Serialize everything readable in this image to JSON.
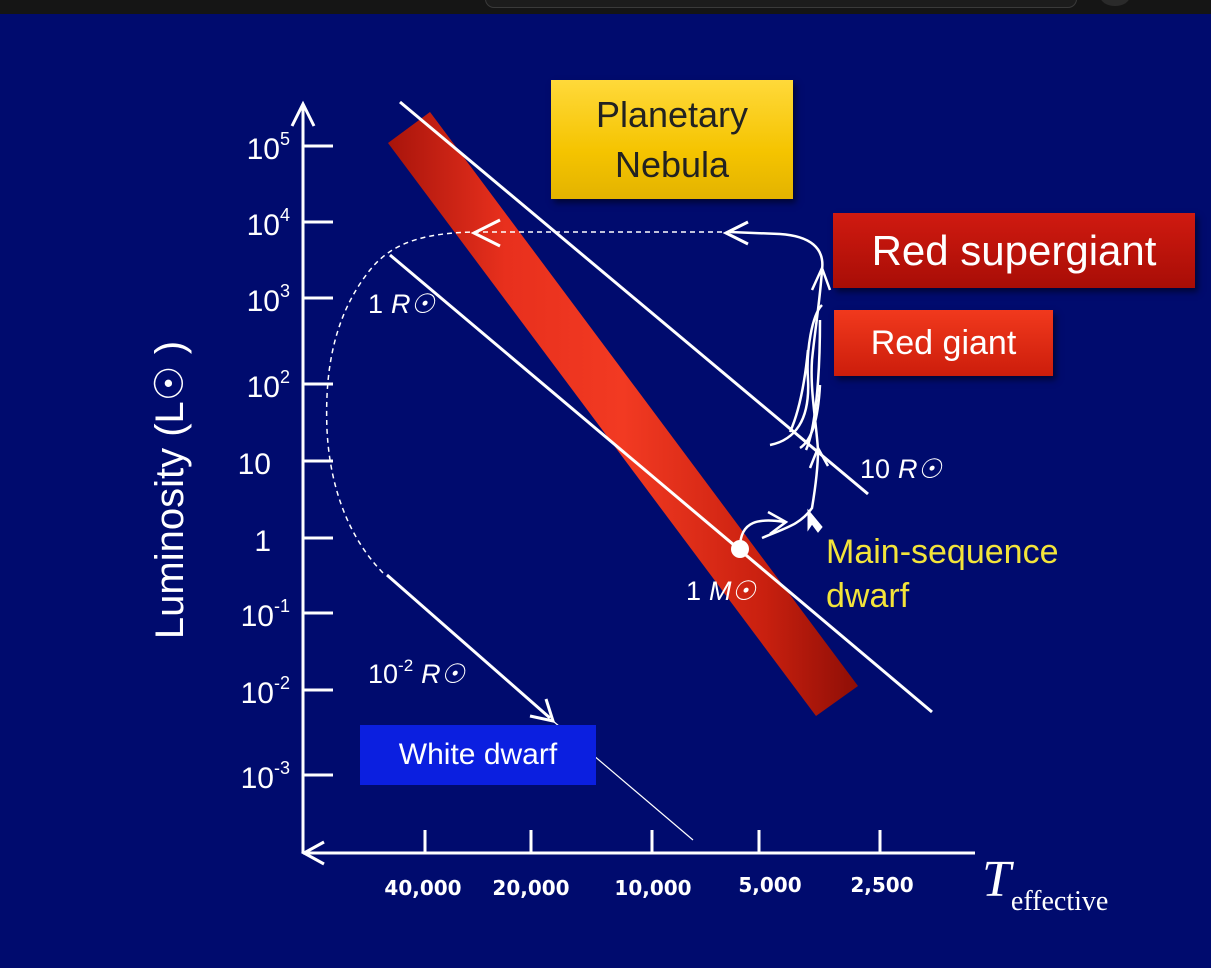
{
  "y_axis": {
    "title": "Luminosity (L☉ )",
    "ticks": [
      {
        "base": "10",
        "exp": "5"
      },
      {
        "base": "10",
        "exp": "4"
      },
      {
        "base": "10",
        "exp": "3"
      },
      {
        "base": "10",
        "exp": "2"
      },
      {
        "base": "10",
        "exp": ""
      },
      {
        "base": "1",
        "exp": ""
      },
      {
        "base": "10",
        "exp": "-1"
      },
      {
        "base": "10",
        "exp": "-2"
      },
      {
        "base": "10",
        "exp": "-3"
      }
    ]
  },
  "x_axis": {
    "title_main": "T",
    "title_sub": "effective",
    "ticks": [
      "40,000",
      "20,000",
      "10,000",
      "5,000",
      "2,500"
    ]
  },
  "radius_lines": {
    "r1": {
      "num": "1",
      "unit": "R☉"
    },
    "r10": {
      "num": "10",
      "unit": "R☉"
    },
    "r001": {
      "num": "10",
      "exp": "-2",
      "unit": "R☉"
    }
  },
  "boxes": {
    "planetary_line1": "Planetary",
    "planetary_line2": "Nebula",
    "red_supergiant": "Red supergiant",
    "red_giant": "Red giant",
    "white_dwarf": "White dwarf",
    "main_sequence_line1": "Main-sequence",
    "main_sequence_line2": "dwarf"
  },
  "sun_marker": {
    "num": "1",
    "unit": "M☉"
  },
  "colors": {
    "background": "#000b6e",
    "main_sequence_band": "#e0281a",
    "planetary_box": "#f5c400",
    "supergiant_box": "#b81208",
    "red_giant_box": "#e52a12",
    "white_dwarf_box": "#0b1fe0",
    "main_sequence_text": "#f3e43a"
  }
}
